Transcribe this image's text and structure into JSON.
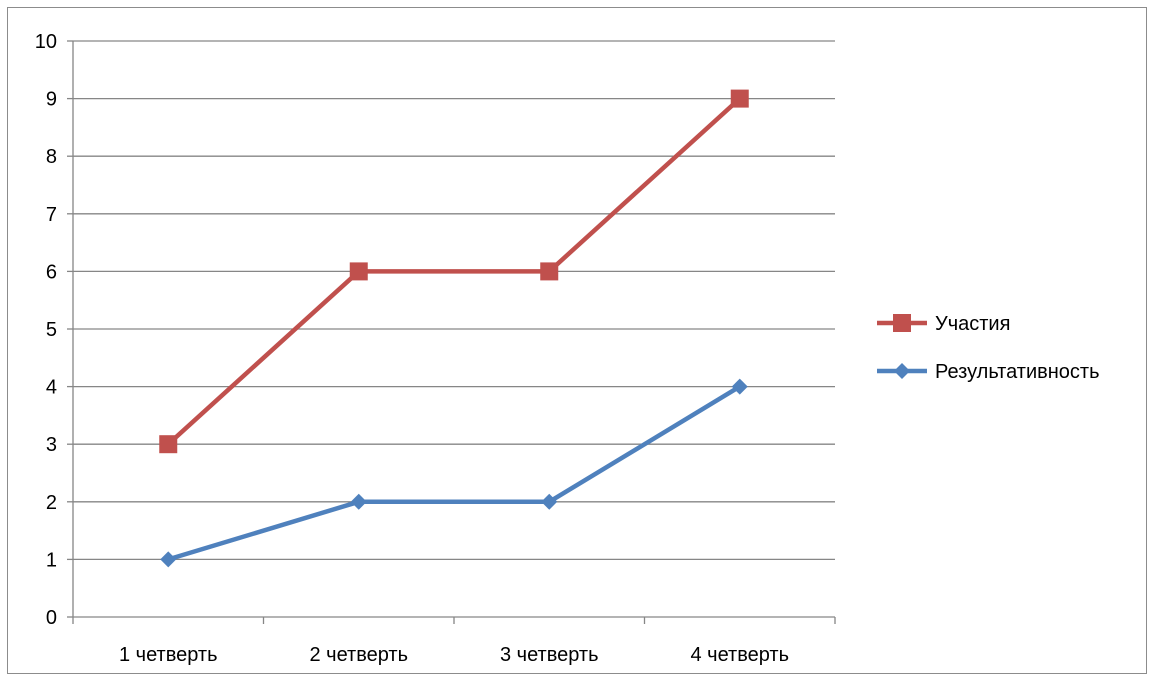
{
  "chart_data": {
    "type": "line",
    "title": "",
    "xlabel": "",
    "ylabel": "",
    "categories": [
      "1 четверть",
      "2 четверть",
      "3 четверть",
      "4 четверть"
    ],
    "ylim": [
      0,
      10
    ],
    "yticks": [
      0,
      1,
      2,
      3,
      4,
      5,
      6,
      7,
      8,
      9,
      10
    ],
    "grid": true,
    "legend_position": "right",
    "series": [
      {
        "name": "Участия",
        "values": [
          3,
          6,
          6,
          9
        ],
        "color": "#C0504D",
        "marker": "square"
      },
      {
        "name": "Результативность",
        "values": [
          1,
          2,
          2,
          4
        ],
        "color": "#4F81BD",
        "marker": "diamond"
      }
    ]
  }
}
